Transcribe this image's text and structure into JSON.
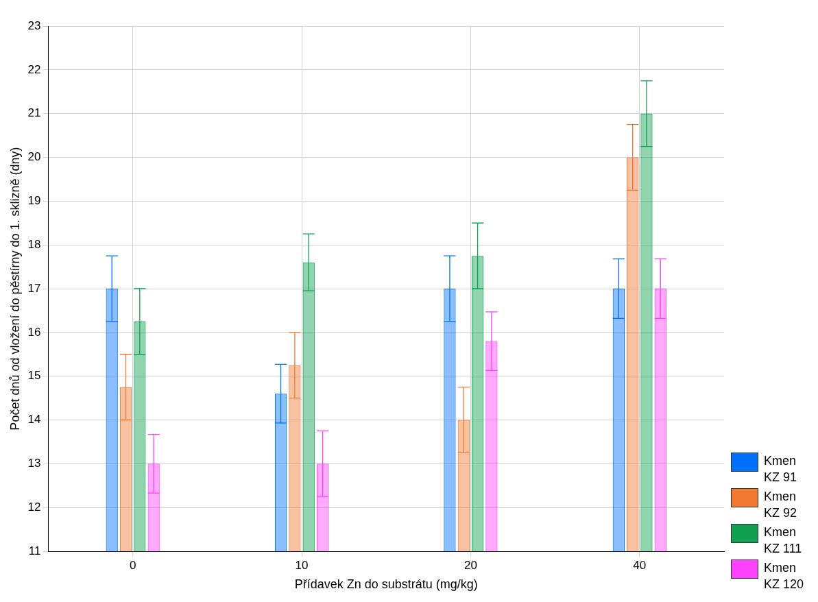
{
  "chart_data": {
    "type": "bar",
    "xlabel": "Přídavek Zn do substrátu (mg/kg)",
    "ylabel": "Počet dnů od vložení do pěstírny do 1. sklizně (dny)",
    "categories": [
      "0",
      "10",
      "20",
      "40"
    ],
    "ylim": [
      11,
      23
    ],
    "yticks": [
      11,
      12,
      13,
      14,
      15,
      16,
      17,
      18,
      19,
      20,
      21,
      22,
      23
    ],
    "grid": true,
    "legend": "bottom right",
    "series": [
      {
        "name": "Kmen KZ 91",
        "color": "#0070ff",
        "values": [
          17,
          14.6,
          17,
          17
        ],
        "errors": [
          0.75,
          0.67,
          0.75,
          0.68
        ]
      },
      {
        "name": "Kmen KZ 92",
        "color": "#f07830",
        "values": [
          14.75,
          15.25,
          14,
          20
        ],
        "errors": [
          0.75,
          0.75,
          0.75,
          0.75
        ]
      },
      {
        "name": "Kmen KZ 111",
        "color": "#10a050",
        "values": [
          16.25,
          17.6,
          17.75,
          21
        ],
        "errors": [
          0.75,
          0.65,
          0.75,
          0.75
        ]
      },
      {
        "name": "Kmen KZ 120",
        "color": "#ff40ff",
        "values": [
          13,
          13,
          15.8,
          17
        ],
        "errors": [
          0.67,
          0.75,
          0.67,
          0.68
        ]
      }
    ]
  }
}
